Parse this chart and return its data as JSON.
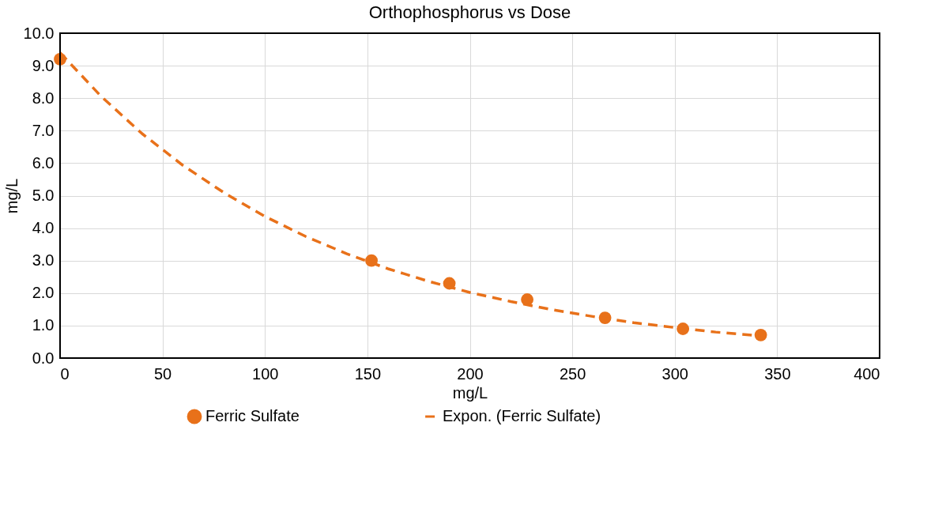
{
  "chart_data": {
    "type": "scatter",
    "title": "Orthophosphorus vs Dose",
    "xlabel": "mg/L",
    "ylabel": "mg/L",
    "xlim": [
      0,
      400
    ],
    "xticks": [
      0,
      50,
      100,
      150,
      200,
      250,
      300,
      350,
      400
    ],
    "ylim": [
      0,
      10
    ],
    "yticks": [
      {
        "value": 0,
        "label": "0.0"
      },
      {
        "value": 1,
        "label": "1.0"
      },
      {
        "value": 2,
        "label": "2.0"
      },
      {
        "value": 3,
        "label": "3.0"
      },
      {
        "value": 4,
        "label": "4.0"
      },
      {
        "value": 5,
        "label": "5.0"
      },
      {
        "value": 6,
        "label": "6.0"
      },
      {
        "value": 7,
        "label": "7.0"
      },
      {
        "value": 8,
        "label": "8.0"
      },
      {
        "value": 9,
        "label": "9.0"
      },
      {
        "value": 10,
        "label": "10.0"
      }
    ],
    "grid": true,
    "legend": "bottom",
    "series": [
      {
        "name": "Ferric Sulfate",
        "marker": "circle",
        "color": "#e8711a",
        "x": [
          0,
          152,
          190,
          228,
          266,
          304,
          342
        ],
        "values": [
          9.2,
          3.0,
          2.3,
          1.8,
          1.24,
          0.9,
          0.71
        ]
      },
      {
        "name": "Expon. (Ferric Sulfate)",
        "type": "line",
        "line_style": "dashed",
        "color": "#e8711a",
        "x": [
          0,
          20,
          40,
          60,
          80,
          100,
          120,
          140,
          160,
          180,
          200,
          220,
          240,
          260,
          280,
          300,
          320,
          342
        ],
        "values": [
          9.4,
          8.06,
          6.91,
          5.93,
          5.09,
          4.36,
          3.74,
          3.21,
          2.75,
          2.36,
          2.02,
          1.74,
          1.49,
          1.28,
          1.09,
          0.94,
          0.8,
          0.68
        ]
      }
    ]
  }
}
